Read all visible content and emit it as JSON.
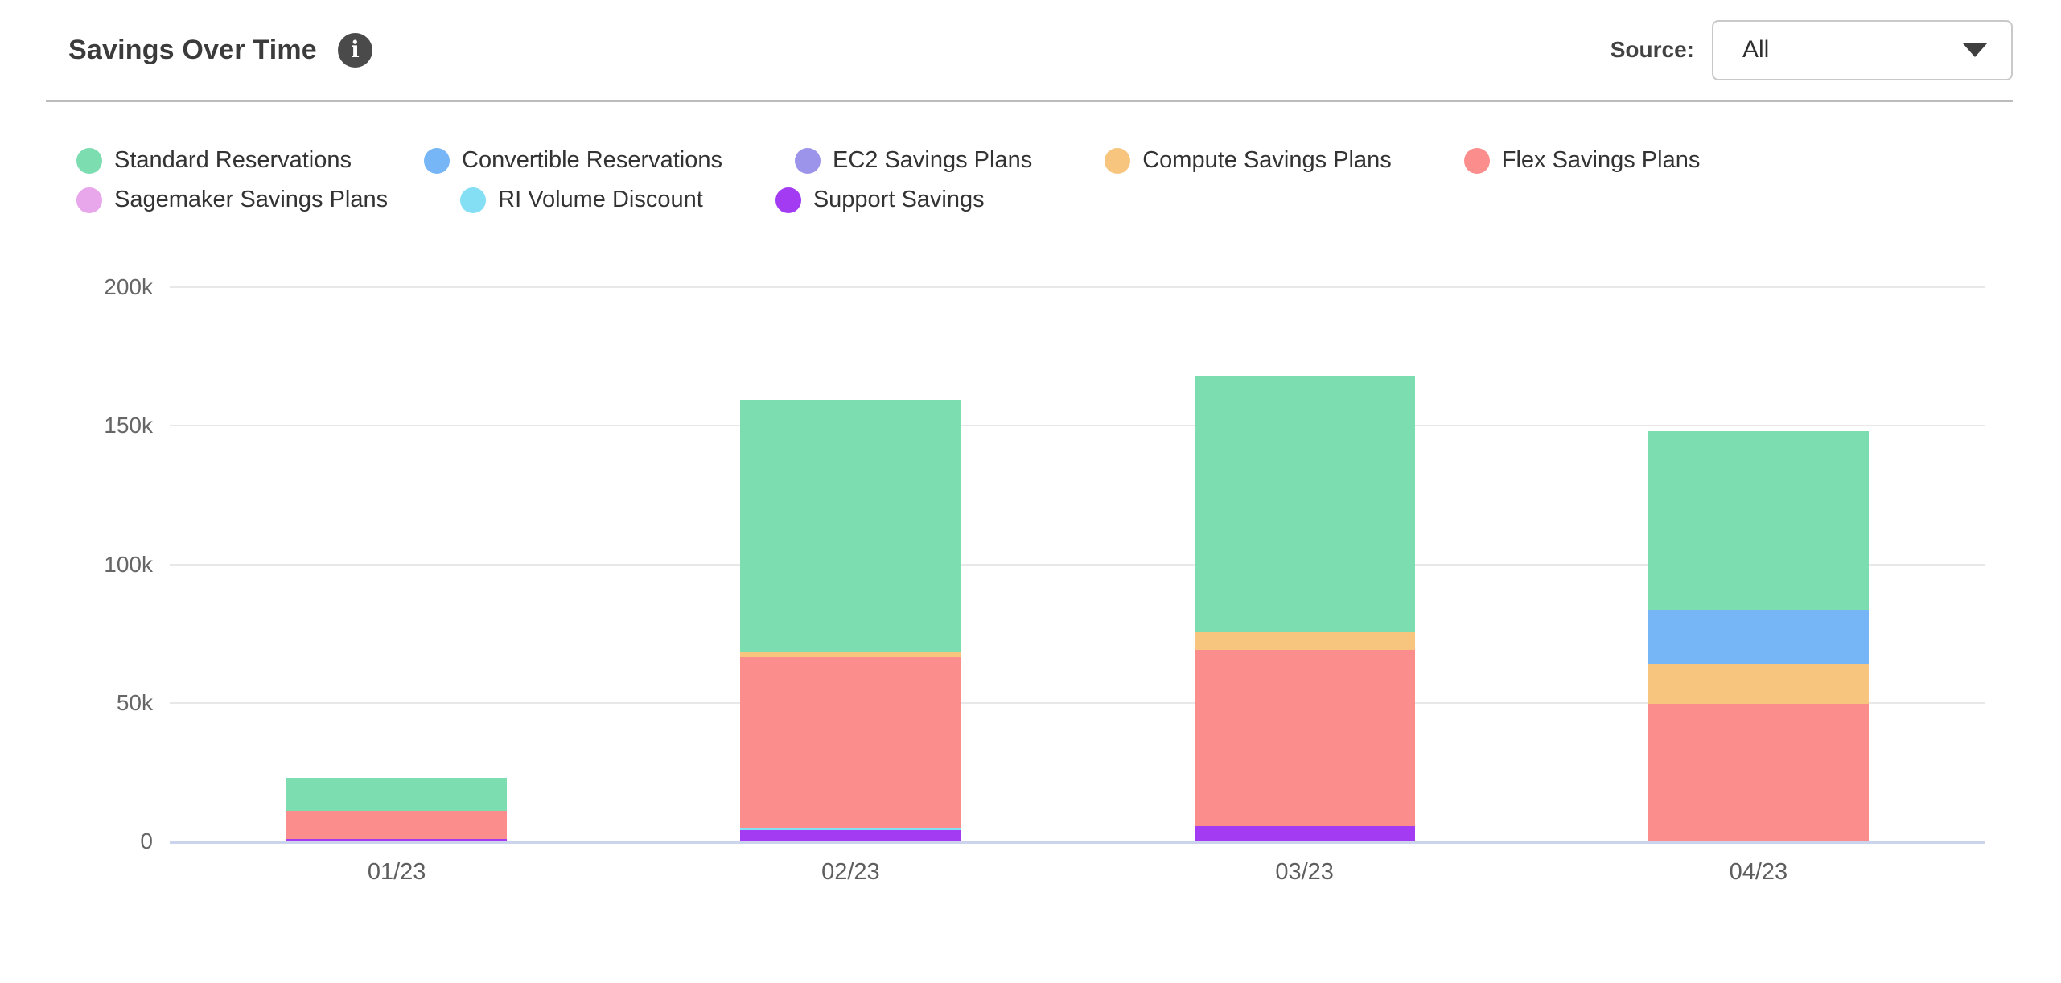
{
  "header": {
    "title": "Savings Over Time",
    "info_icon": "i",
    "source_label": "Source:",
    "source_value": "All"
  },
  "colors": {
    "divider": "#BCBCBC",
    "gridline": "#E8E8E8",
    "zero_line": "#CBD4EC",
    "axis_text": "#666666",
    "legend_text": "#333333"
  },
  "chart_data": {
    "type": "bar",
    "stacked": true,
    "title": "Savings Over Time",
    "unit": "thousands (k)",
    "stack_order": "reverse of legend order, bottom to top",
    "legend_position": "top-left",
    "grid": true,
    "categories": [
      "01/23",
      "02/23",
      "03/23",
      "04/23"
    ],
    "series": [
      {
        "name": "Standard Reservations",
        "color": "#7CDDB0",
        "values_k": [
          12,
          91,
          92.5,
          64.5
        ]
      },
      {
        "name": "Convertible Reservations",
        "color": "#76B6F6",
        "values_k": [
          0,
          0,
          0,
          19.5
        ]
      },
      {
        "name": "EC2 Savings Plans",
        "color": "#9C93EA",
        "values_k": [
          0,
          0,
          0,
          0
        ]
      },
      {
        "name": "Compute Savings Plans",
        "color": "#F7C57E",
        "values_k": [
          0,
          2,
          6.5,
          14.5
        ]
      },
      {
        "name": "Flex Savings Plans",
        "color": "#FB8D8D",
        "values_k": [
          10,
          61.5,
          63.5,
          49.5
        ]
      },
      {
        "name": "Sagemaker Savings Plans",
        "color": "#E8A6EB",
        "values_k": [
          0,
          0,
          0,
          0
        ]
      },
      {
        "name": "RI Volume Discount",
        "color": "#84DFF4",
        "values_k": [
          0,
          1,
          0,
          0
        ]
      },
      {
        "name": "Support Savings",
        "color": "#A23BF2",
        "values_k": [
          1,
          4,
          5.5,
          0
        ]
      }
    ],
    "totals_k": [
      23,
      159.5,
      168,
      148
    ],
    "ylim_k": [
      0,
      200
    ],
    "yticks": [
      {
        "value_k": 0,
        "label": "0"
      },
      {
        "value_k": 50,
        "label": "50k"
      },
      {
        "value_k": 100,
        "label": "100k"
      },
      {
        "value_k": 150,
        "label": "150k"
      },
      {
        "value_k": 200,
        "label": "200k"
      }
    ],
    "xlabel": "",
    "ylabel": ""
  }
}
